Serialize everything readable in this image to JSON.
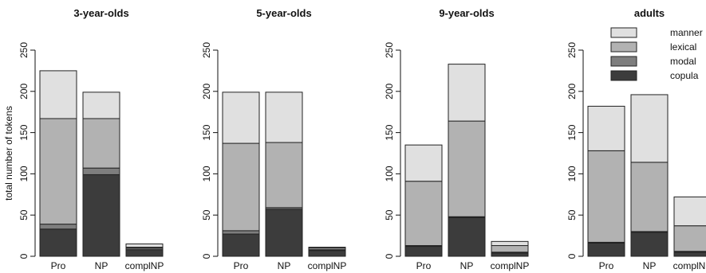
{
  "chart_data": [
    {
      "type": "bar",
      "stacked": true,
      "title": "3-year-olds",
      "ylabel": "total number of tokens",
      "ylim": [
        0,
        250
      ],
      "yticks": [
        0,
        50,
        100,
        150,
        200,
        250
      ],
      "categories": [
        "Pro",
        "NP",
        "complNP"
      ],
      "series": [
        {
          "name": "copula",
          "color": "#3c3c3c",
          "values": [
            33,
            99,
            8
          ]
        },
        {
          "name": "modal",
          "color": "#7e7e7e",
          "values": [
            6,
            8,
            2
          ]
        },
        {
          "name": "lexical",
          "color": "#b2b2b2",
          "values": [
            128,
            60,
            1
          ]
        },
        {
          "name": "manner",
          "color": "#e0e0e0",
          "values": [
            58,
            32,
            4
          ]
        }
      ]
    },
    {
      "type": "bar",
      "stacked": true,
      "title": "5-year-olds",
      "ylabel": "",
      "ylim": [
        0,
        250
      ],
      "yticks": [
        0,
        50,
        100,
        150,
        200,
        250
      ],
      "categories": [
        "Pro",
        "NP",
        "complNP"
      ],
      "series": [
        {
          "name": "copula",
          "color": "#3c3c3c",
          "values": [
            27,
            57,
            7
          ]
        },
        {
          "name": "modal",
          "color": "#7e7e7e",
          "values": [
            4,
            2,
            1
          ]
        },
        {
          "name": "lexical",
          "color": "#b2b2b2",
          "values": [
            106,
            79,
            2
          ]
        },
        {
          "name": "manner",
          "color": "#e0e0e0",
          "values": [
            62,
            61,
            1
          ]
        }
      ]
    },
    {
      "type": "bar",
      "stacked": true,
      "title": "9-year-olds",
      "ylabel": "",
      "ylim": [
        0,
        250
      ],
      "yticks": [
        0,
        50,
        100,
        150,
        200,
        250
      ],
      "categories": [
        "Pro",
        "NP",
        "complNP"
      ],
      "series": [
        {
          "name": "copula",
          "color": "#3c3c3c",
          "values": [
            12,
            47,
            4
          ]
        },
        {
          "name": "modal",
          "color": "#7e7e7e",
          "values": [
            1,
            1,
            1
          ]
        },
        {
          "name": "lexical",
          "color": "#b2b2b2",
          "values": [
            78,
            116,
            8
          ]
        },
        {
          "name": "manner",
          "color": "#e0e0e0",
          "values": [
            44,
            69,
            5
          ]
        }
      ]
    },
    {
      "type": "bar",
      "stacked": true,
      "title": "adults",
      "ylabel": "",
      "ylim": [
        0,
        250
      ],
      "yticks": [
        0,
        50,
        100,
        150,
        200,
        250
      ],
      "categories": [
        "Pro",
        "NP",
        "complNP"
      ],
      "series": [
        {
          "name": "copula",
          "color": "#3c3c3c",
          "values": [
            16,
            29,
            5
          ]
        },
        {
          "name": "modal",
          "color": "#7e7e7e",
          "values": [
            1,
            1,
            1
          ]
        },
        {
          "name": "lexical",
          "color": "#b2b2b2",
          "values": [
            111,
            84,
            31
          ]
        },
        {
          "name": "manner",
          "color": "#e0e0e0",
          "values": [
            54,
            82,
            35
          ]
        }
      ]
    }
  ],
  "legend": {
    "placement": "top-right",
    "entries": [
      {
        "name": "manner",
        "color": "#e0e0e0"
      },
      {
        "name": "lexical",
        "color": "#b2b2b2"
      },
      {
        "name": "modal",
        "color": "#7e7e7e"
      },
      {
        "name": "copula",
        "color": "#3c3c3c"
      }
    ]
  }
}
